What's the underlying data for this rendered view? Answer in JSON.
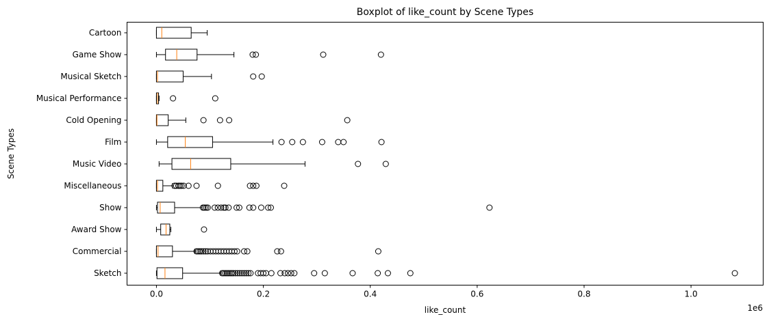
{
  "chart_data": {
    "type": "boxplot",
    "orientation": "horizontal",
    "title": "Boxplot of like_count by Scene Types",
    "xlabel": "like_count",
    "ylabel": "Scene Types",
    "x_scale_label": "1e6",
    "xlim": [
      -55000,
      1135000
    ],
    "x_ticks": [
      0,
      200000,
      400000,
      600000,
      800000,
      1000000
    ],
    "x_tick_labels": [
      "0.0",
      "0.2",
      "0.4",
      "0.6",
      "0.8",
      "1.0"
    ],
    "box_color": "#000000",
    "median_color": "#ff7f0e",
    "categories": [
      "Cartoon",
      "Game Show",
      "Musical Sketch",
      "Musical Performance",
      "Cold Opening",
      "Film",
      "Music Video",
      "Miscellaneous",
      "Show",
      "Award Show",
      "Commercial",
      "Sketch"
    ],
    "boxes": [
      {
        "name": "Cartoon",
        "whislo": 0,
        "q1": 0,
        "med": 10000,
        "q3": 65000,
        "whishi": 95000,
        "fliers": []
      },
      {
        "name": "Game Show",
        "whislo": 0,
        "q1": 17000,
        "med": 38000,
        "q3": 76000,
        "whishi": 145000,
        "fliers": [
          180000,
          186000,
          312000,
          420000
        ]
      },
      {
        "name": "Musical Sketch",
        "whislo": 0,
        "q1": 0,
        "med": 2000,
        "q3": 50000,
        "whishi": 103000,
        "fliers": [
          181000,
          197000
        ]
      },
      {
        "name": "Musical Performance",
        "whislo": 0,
        "q1": 0,
        "med": 2000,
        "q3": 4000,
        "whishi": 5000,
        "fliers": [
          31000,
          110000
        ]
      },
      {
        "name": "Cold Opening",
        "whislo": 0,
        "q1": 0,
        "med": 1000,
        "q3": 22000,
        "whishi": 55000,
        "fliers": [
          88000,
          119000,
          136000,
          357000
        ]
      },
      {
        "name": "Film",
        "whislo": 0,
        "q1": 21000,
        "med": 54000,
        "q3": 105000,
        "whishi": 218000,
        "fliers": [
          234000,
          254000,
          274000,
          310000,
          340000,
          350000,
          421000
        ]
      },
      {
        "name": "Music Video",
        "whislo": 5000,
        "q1": 29000,
        "med": 64000,
        "q3": 139000,
        "whishi": 278000,
        "fliers": [
          377000,
          429000
        ]
      },
      {
        "name": "Miscellaneous",
        "whislo": 0,
        "q1": 0,
        "med": 2000,
        "q3": 12000,
        "whishi": 30000,
        "fliers": [
          34000,
          37000,
          41000,
          44000,
          47000,
          51000,
          60000,
          75000,
          115000,
          175000,
          181000,
          187000,
          239000
        ]
      },
      {
        "name": "Show",
        "whislo": 0,
        "q1": 2000,
        "med": 7000,
        "q3": 34000,
        "whishi": 85000,
        "fliers": [
          87000,
          90000,
          93000,
          96000,
          109000,
          115000,
          121000,
          126000,
          129000,
          135000,
          150000,
          155000,
          174000,
          181000,
          196000,
          209000,
          214000,
          623000
        ]
      },
      {
        "name": "Award Show",
        "whislo": 0,
        "q1": 8000,
        "med": 18000,
        "q3": 25000,
        "whishi": 27000,
        "fliers": [
          89000
        ]
      },
      {
        "name": "Commercial",
        "whislo": 0,
        "q1": 0,
        "med": 3000,
        "q3": 30000,
        "whishi": 72000,
        "fliers": [
          75000,
          78000,
          81000,
          84000,
          88000,
          92000,
          96000,
          101000,
          106000,
          111000,
          116000,
          121000,
          126000,
          131000,
          136000,
          141000,
          146000,
          151000,
          164000,
          170000,
          226000,
          233000,
          415000
        ]
      },
      {
        "name": "Sketch",
        "whislo": 0,
        "q1": 1000,
        "med": 16000,
        "q3": 49000,
        "whishi": 120000,
        "fliers": [
          123000,
          126000,
          129000,
          132000,
          135000,
          138000,
          141000,
          144000,
          148000,
          152000,
          156000,
          160000,
          164000,
          168000,
          172000,
          176000,
          190000,
          195000,
          200000,
          205000,
          215000,
          232000,
          240000,
          246000,
          252000,
          258000,
          295000,
          315000,
          367000,
          414000,
          433000,
          475000,
          1082000
        ]
      }
    ]
  }
}
